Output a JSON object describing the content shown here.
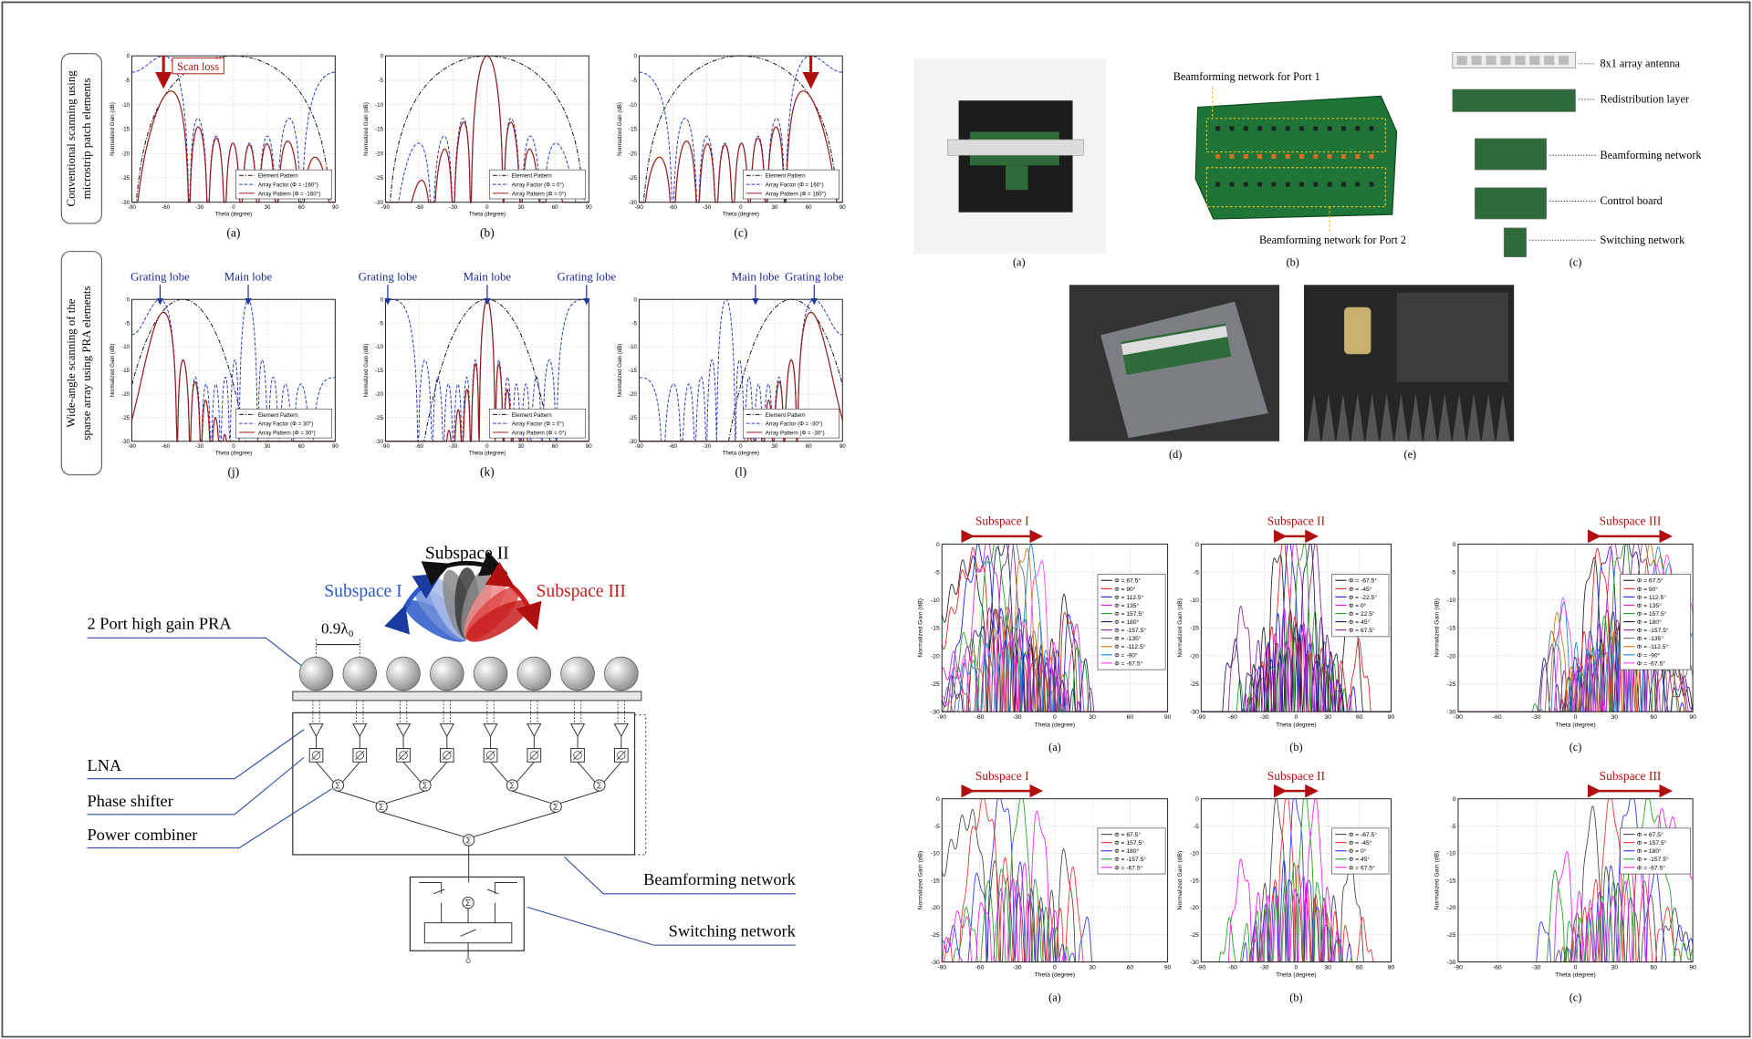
{
  "pattern_figure": {
    "x_label": "Theta (degree)",
    "y_label": "Normalized Gain (dB)",
    "x_ticks": [
      -90,
      -60,
      -30,
      0,
      30,
      60,
      90
    ],
    "y_ticks": [
      0,
      -5,
      -10,
      -15,
      -20,
      -25,
      -30
    ],
    "rows": [
      {
        "label": [
          "Conventional scanning using",
          "microstrip patch elements"
        ],
        "panels": [
          {
            "caption": "(a)",
            "legend": [
              "Element Pattern",
              "Array Factor (Φ = -160°)",
              "Array Pattern (Φ = -160°)"
            ],
            "annotations": [
              "Scan loss"
            ]
          },
          {
            "caption": "(b)",
            "legend": [
              "Element Pattern",
              "Array Factor (Φ = 0°)",
              "Array Pattern (Φ = 0°)"
            ]
          },
          {
            "caption": "(c)",
            "legend": [
              "Element Pattern",
              "Array Factor (Φ = 160°)",
              "Array Pattern (Φ = 160°)"
            ]
          }
        ]
      },
      {
        "label": [
          "Wide-angle scanning of the",
          "sparse array using PRA elements"
        ],
        "panels": [
          {
            "caption": "(j)",
            "legend": [
              "Element Pattern",
              "Array Factor (Φ = 30°)",
              "Array Pattern (Φ = 30°)"
            ],
            "annotations": [
              "Grating lobe",
              "Main lobe"
            ]
          },
          {
            "caption": "(k)",
            "legend": [
              "Element Pattern",
              "Array Factor (Φ = 0°)",
              "Array Pattern (Φ = 0°)"
            ],
            "annotations": [
              "Grating lobe",
              "Main lobe",
              "Grating lobe"
            ]
          },
          {
            "caption": "(l)",
            "legend": [
              "Element Pattern",
              "Array Factor (Φ = -30°)",
              "Array Pattern (Φ = -30°)"
            ],
            "annotations": [
              "Main lobe",
              "Grating lobe"
            ]
          }
        ]
      }
    ]
  },
  "system_diagram": {
    "subspaces": [
      "Subspace I",
      "Subspace II",
      "Subspace III"
    ],
    "antenna": "2 Port high gain PRA",
    "spacing": "0.9λ₀",
    "labels": [
      "LNA",
      "Phase shifter",
      "Power combiner",
      "Beamforming network",
      "Switching network"
    ]
  },
  "photos": {
    "captions": [
      "(a)",
      "(b)",
      "(c)",
      "(d)",
      "(e)"
    ],
    "port_labels": [
      "Beamforming network for Port 1",
      "Beamforming network for Port 2"
    ],
    "layers": [
      "8x1 array antenna",
      "Redistribution layer",
      "Beamforming network",
      "Control board",
      "Switching network"
    ]
  },
  "measured_patterns": {
    "x_label": "Theta (degree)",
    "y_label": "Normalized Gain (dB)",
    "x_ticks": [
      -90,
      -60,
      -30,
      0,
      30,
      60,
      90
    ],
    "y_ticks": [
      0,
      -5,
      -10,
      -15,
      -20,
      -25,
      -30
    ],
    "rows": [
      {
        "panels": [
          {
            "title": "Subspace I",
            "caption": "(a)",
            "legend": [
              "Φ = 67.5°",
              "Φ = 90°",
              "Φ = 112.5°",
              "Φ = 135°",
              "Φ = 157.5°",
              "Φ = 180°",
              "Φ = -157.5°",
              "Φ = -135°",
              "Φ = -112.5°",
              "Φ = -90°",
              "Φ = -67.5°"
            ]
          },
          {
            "title": "Subspace II",
            "caption": "(b)",
            "legend": [
              "Φ = -67.5°",
              "Φ = -45°",
              "Φ = -22.5°",
              "Φ = 0°",
              "Φ = 22.5°",
              "Φ = 45°",
              "Φ = 67.5°"
            ]
          },
          {
            "title": "Subspace III",
            "caption": "(c)",
            "legend": [
              "Φ = 67.5°",
              "Φ = 90°",
              "Φ = 112.5°",
              "Φ = 135°",
              "Φ = 157.5°",
              "Φ = 180°",
              "Φ = -157.5°",
              "Φ = -135°",
              "Φ = -112.5°",
              "Φ = -90°",
              "Φ = -67.5°"
            ]
          }
        ]
      },
      {
        "panels": [
          {
            "title": "Subspace I",
            "caption": "(a)",
            "legend": [
              "Φ = 67.5°",
              "Φ = 157.5°",
              "Φ = 180°",
              "Φ = -157.5°",
              "Φ = -67.5°"
            ]
          },
          {
            "title": "Subspace II",
            "caption": "(b)",
            "legend": [
              "Φ = -67.5°",
              "Φ = -45°",
              "Φ = 0°",
              "Φ = 45°",
              "Φ = 67.5°"
            ]
          },
          {
            "title": "Subspace III",
            "caption": "(c)",
            "legend": [
              "Φ = 67.5°",
              "Φ = 157.5°",
              "Φ = 180°",
              "Φ = -157.5°",
              "Φ = -67.5°"
            ]
          }
        ]
      }
    ]
  }
}
